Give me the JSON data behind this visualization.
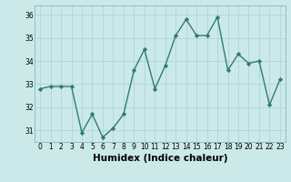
{
  "x": [
    0,
    1,
    2,
    3,
    4,
    5,
    6,
    7,
    8,
    9,
    10,
    11,
    12,
    13,
    14,
    15,
    16,
    17,
    18,
    19,
    20,
    21,
    22,
    23
  ],
  "y": [
    32.8,
    32.9,
    32.9,
    32.9,
    30.9,
    31.7,
    30.7,
    31.1,
    31.7,
    33.6,
    34.5,
    32.8,
    33.8,
    35.1,
    35.8,
    35.1,
    35.1,
    35.9,
    33.6,
    34.3,
    33.9,
    34.0,
    32.1,
    33.2
  ],
  "line_color": "#2e7d6e",
  "marker": "D",
  "marker_size": 2.2,
  "linewidth": 1.0,
  "bg_color": "#cce9e9",
  "grid_color": "#b0d4d4",
  "xlabel": "Humidex (Indice chaleur)",
  "ylim": [
    30.5,
    36.4
  ],
  "xlim": [
    -0.5,
    23.5
  ],
  "yticks": [
    31,
    32,
    33,
    34,
    35,
    36
  ],
  "xticks": [
    0,
    1,
    2,
    3,
    4,
    5,
    6,
    7,
    8,
    9,
    10,
    11,
    12,
    13,
    14,
    15,
    16,
    17,
    18,
    19,
    20,
    21,
    22,
    23
  ],
  "tick_fontsize": 5.5,
  "xlabel_fontsize": 7.5
}
